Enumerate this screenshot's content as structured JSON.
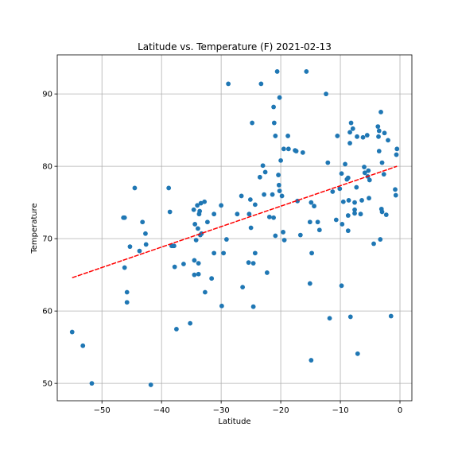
{
  "chart_data": {
    "type": "scatter",
    "title": "Latitude vs. Temperature (F) 2021-02-13",
    "xlabel": "Latitude",
    "ylabel": "Temperature",
    "xlim": [
      -57.5,
      2.0
    ],
    "ylim": [
      47.6,
      95.4
    ],
    "xticks": [
      -50,
      -40,
      -30,
      -20,
      -10,
      0
    ],
    "yticks": [
      50,
      60,
      70,
      80,
      90
    ],
    "xtick_labels": [
      "−50",
      "−40",
      "−30",
      "−20",
      "−10",
      "0"
    ],
    "ytick_labels": [
      "50",
      "60",
      "70",
      "80",
      "90"
    ],
    "grid": true,
    "point_color": "#1f77b4",
    "regression_color": "#ff0000",
    "regression": {
      "x": [
        -55.0,
        -0.5
      ],
      "y": [
        64.6,
        80.0
      ]
    },
    "points": [
      [
        -55.0,
        57.1
      ],
      [
        -53.2,
        55.2
      ],
      [
        -51.7,
        50.0
      ],
      [
        -46.4,
        72.9
      ],
      [
        -46.2,
        72.9
      ],
      [
        -46.2,
        66.0
      ],
      [
        -45.8,
        62.6
      ],
      [
        -45.8,
        61.2
      ],
      [
        -45.3,
        68.9
      ],
      [
        -44.5,
        77.0
      ],
      [
        -43.7,
        68.3
      ],
      [
        -43.2,
        72.3
      ],
      [
        -42.7,
        70.7
      ],
      [
        -42.6,
        69.2
      ],
      [
        -41.8,
        49.8
      ],
      [
        -38.8,
        77.0
      ],
      [
        -38.6,
        73.7
      ],
      [
        -38.3,
        69.0
      ],
      [
        -38.1,
        69.0
      ],
      [
        -37.9,
        69.0
      ],
      [
        -37.8,
        66.1
      ],
      [
        -37.5,
        57.5
      ],
      [
        -36.3,
        66.5
      ],
      [
        -35.2,
        58.3
      ],
      [
        -34.6,
        74.0
      ],
      [
        -34.5,
        67.0
      ],
      [
        -34.5,
        65.0
      ],
      [
        -34.4,
        72.0
      ],
      [
        -34.2,
        69.8
      ],
      [
        -34.0,
        74.6
      ],
      [
        -33.9,
        71.4
      ],
      [
        -33.8,
        66.6
      ],
      [
        -33.8,
        65.1
      ],
      [
        -33.7,
        73.4
      ],
      [
        -33.6,
        73.8
      ],
      [
        -33.5,
        70.5
      ],
      [
        -33.4,
        74.9
      ],
      [
        -33.3,
        70.7
      ],
      [
        -32.8,
        75.1
      ],
      [
        -32.7,
        62.6
      ],
      [
        -32.3,
        72.3
      ],
      [
        -31.6,
        64.5
      ],
      [
        -31.2,
        73.4
      ],
      [
        -31.2,
        68.0
      ],
      [
        -30.0,
        74.6
      ],
      [
        -29.9,
        60.7
      ],
      [
        -29.6,
        68.0
      ],
      [
        -29.1,
        69.9
      ],
      [
        -28.8,
        91.4
      ],
      [
        -27.3,
        73.4
      ],
      [
        -26.6,
        75.9
      ],
      [
        -26.4,
        63.3
      ],
      [
        -25.4,
        66.7
      ],
      [
        -25.3,
        73.4
      ],
      [
        -25.1,
        75.4
      ],
      [
        -25.0,
        71.5
      ],
      [
        -24.8,
        86.0
      ],
      [
        -24.6,
        60.6
      ],
      [
        -24.6,
        66.6
      ],
      [
        -24.3,
        68.0
      ],
      [
        -24.3,
        74.7
      ],
      [
        -23.5,
        78.5
      ],
      [
        -23.3,
        91.4
      ],
      [
        -23.0,
        80.1
      ],
      [
        -22.8,
        76.1
      ],
      [
        -22.6,
        79.2
      ],
      [
        -22.3,
        65.3
      ],
      [
        -21.9,
        73.0
      ],
      [
        -21.4,
        76.1
      ],
      [
        -21.2,
        88.2
      ],
      [
        -21.2,
        72.9
      ],
      [
        -21.1,
        86.0
      ],
      [
        -20.9,
        84.2
      ],
      [
        -20.9,
        70.4
      ],
      [
        -20.6,
        93.1
      ],
      [
        -20.4,
        78.8
      ],
      [
        -20.3,
        77.4
      ],
      [
        -20.2,
        76.6
      ],
      [
        -20.2,
        89.5
      ],
      [
        -20.0,
        80.8
      ],
      [
        -19.8,
        75.9
      ],
      [
        -19.6,
        70.9
      ],
      [
        -19.5,
        82.4
      ],
      [
        -19.4,
        69.8
      ],
      [
        -18.8,
        84.2
      ],
      [
        -18.7,
        82.4
      ],
      [
        -17.6,
        82.2
      ],
      [
        -17.4,
        82.1
      ],
      [
        -17.2,
        75.2
      ],
      [
        -16.7,
        70.5
      ],
      [
        -16.3,
        81.9
      ],
      [
        -15.7,
        93.1
      ],
      [
        -15.1,
        72.3
      ],
      [
        -15.1,
        63.8
      ],
      [
        -14.9,
        53.2
      ],
      [
        -14.9,
        75.0
      ],
      [
        -14.8,
        68.0
      ],
      [
        -14.4,
        74.5
      ],
      [
        -13.8,
        72.3
      ],
      [
        -13.5,
        71.2
      ],
      [
        -12.4,
        90.0
      ],
      [
        -12.1,
        80.5
      ],
      [
        -11.8,
        59.0
      ],
      [
        -11.3,
        76.5
      ],
      [
        -10.7,
        72.6
      ],
      [
        -10.5,
        84.2
      ],
      [
        -10.1,
        76.9
      ],
      [
        -9.8,
        79.0
      ],
      [
        -9.8,
        63.5
      ],
      [
        -9.7,
        72.0
      ],
      [
        -9.5,
        75.1
      ],
      [
        -9.2,
        80.3
      ],
      [
        -8.9,
        78.2
      ],
      [
        -8.7,
        78.4
      ],
      [
        -8.7,
        73.2
      ],
      [
        -8.7,
        71.1
      ],
      [
        -8.6,
        75.3
      ],
      [
        -8.4,
        84.7
      ],
      [
        -8.4,
        83.2
      ],
      [
        -8.3,
        59.2
      ],
      [
        -8.2,
        86.0
      ],
      [
        -7.9,
        85.2
      ],
      [
        -7.6,
        75.0
      ],
      [
        -7.6,
        74.0
      ],
      [
        -7.6,
        73.5
      ],
      [
        -7.3,
        77.1
      ],
      [
        -7.2,
        84.1
      ],
      [
        -7.1,
        54.1
      ],
      [
        -6.6,
        73.4
      ],
      [
        -6.4,
        75.3
      ],
      [
        -6.2,
        84.0
      ],
      [
        -6.0,
        79.9
      ],
      [
        -5.9,
        79.1
      ],
      [
        -5.5,
        84.3
      ],
      [
        -5.4,
        78.6
      ],
      [
        -5.3,
        79.4
      ],
      [
        -5.2,
        75.6
      ],
      [
        -5.1,
        78.1
      ],
      [
        -4.4,
        69.3
      ],
      [
        -3.7,
        85.5
      ],
      [
        -3.6,
        84.1
      ],
      [
        -3.5,
        82.1
      ],
      [
        -3.5,
        84.9
      ],
      [
        -3.3,
        69.9
      ],
      [
        -3.2,
        87.5
      ],
      [
        -3.1,
        74.1
      ],
      [
        -3.0,
        73.7
      ],
      [
        -3.0,
        80.5
      ],
      [
        -2.7,
        78.9
      ],
      [
        -2.6,
        84.6
      ],
      [
        -2.3,
        73.3
      ],
      [
        -2.0,
        83.6
      ],
      [
        -1.5,
        59.3
      ],
      [
        -0.8,
        76.8
      ],
      [
        -0.7,
        76.0
      ],
      [
        -0.6,
        81.6
      ],
      [
        -0.5,
        82.4
      ]
    ]
  }
}
